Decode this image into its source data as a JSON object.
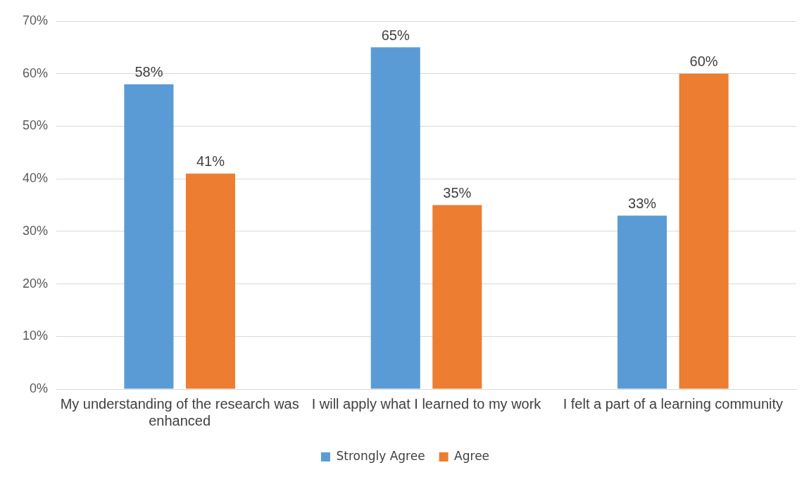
{
  "chart_data": {
    "type": "bar",
    "categories": [
      "My understanding of the research was enhanced",
      "I will apply what I learned to my work",
      "I felt a part of a learning community"
    ],
    "series": [
      {
        "name": "Strongly Agree",
        "color": "#5b9bd5",
        "values": [
          58,
          65,
          33
        ],
        "value_labels": [
          "58%",
          "65%",
          "33%"
        ]
      },
      {
        "name": "Agree",
        "color": "#ed7d31",
        "values": [
          41,
          35,
          60
        ],
        "value_labels": [
          "41%",
          "35%",
          "60%"
        ]
      }
    ],
    "ylim": [
      0,
      70
    ],
    "yticks": [
      {
        "value": 0,
        "label": "0%"
      },
      {
        "value": 10,
        "label": "10%"
      },
      {
        "value": 20,
        "label": "20%"
      },
      {
        "value": 30,
        "label": "30%"
      },
      {
        "value": 40,
        "label": "40%"
      },
      {
        "value": 50,
        "label": "50%"
      },
      {
        "value": 60,
        "label": "60%"
      },
      {
        "value": 70,
        "label": "70%"
      }
    ],
    "grid": "y",
    "legend": "bottom"
  }
}
